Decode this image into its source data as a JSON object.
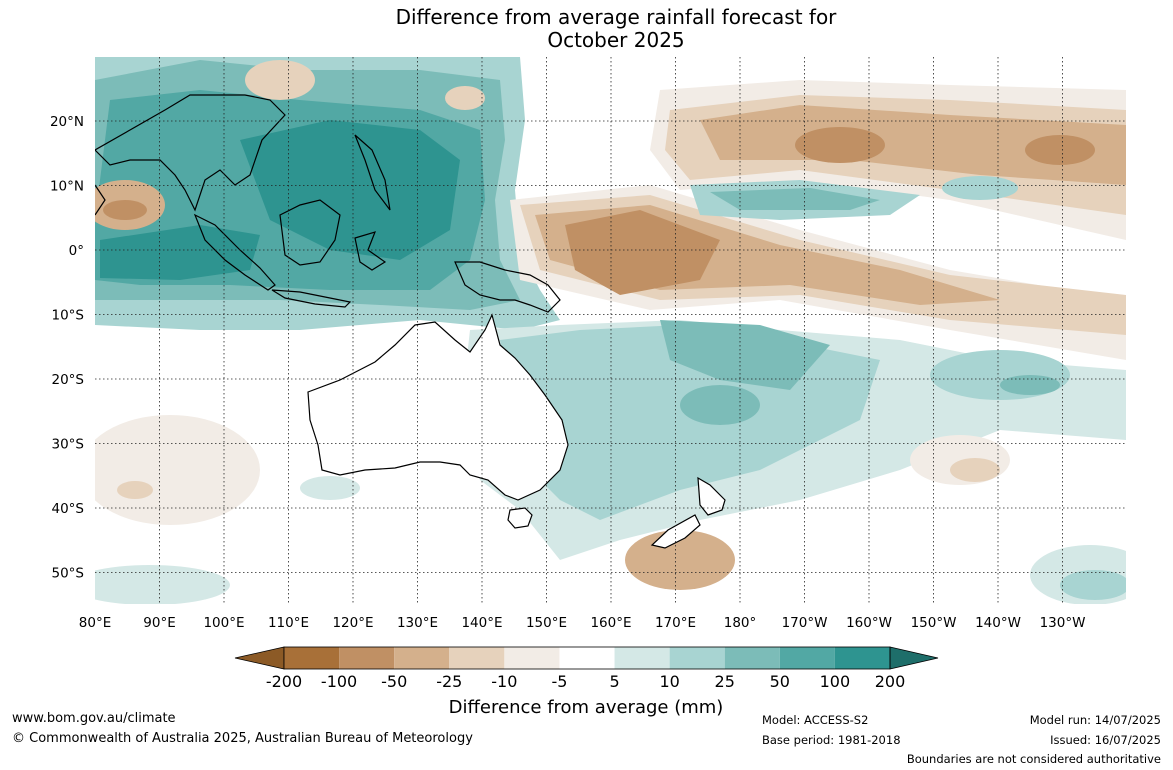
{
  "title": {
    "line1": "Difference from average rainfall forecast for",
    "line2": "October 2025"
  },
  "map": {
    "lon_labels": [
      "80°E",
      "90°E",
      "100°E",
      "110°E",
      "120°E",
      "130°E",
      "140°E",
      "150°E",
      "160°E",
      "170°E",
      "180°",
      "170°W",
      "160°W",
      "150°W",
      "140°W",
      "130°W"
    ],
    "lat_labels": [
      "20°N",
      "10°N",
      "0°",
      "10°S",
      "20°S",
      "30°S",
      "40°S",
      "50°S"
    ],
    "region": "Australia, Indonesia, Western Pacific"
  },
  "colorbar": {
    "tick_labels": [
      "-200",
      "-100",
      "-50",
      "-25",
      "-10",
      "-5",
      "5",
      "10",
      "25",
      "50",
      "100",
      "200"
    ],
    "colors": [
      "#8c5a26",
      "#a87038",
      "#c09064",
      "#d4b08c",
      "#e6d2bc",
      "#f2ece6",
      "#ffffff",
      "#d4e8e6",
      "#a8d4d2",
      "#7cbcb8",
      "#52a8a4",
      "#2e9490",
      "#1e6e6a"
    ],
    "title": "Difference from average (mm)"
  },
  "footer": {
    "website": "www.bom.gov.au/climate",
    "copyright": "© Commonwealth of Australia 2025, Australian Bureau of Meteorology",
    "model": "Model: ACCESS-S2",
    "base_period": "Base period: 1981-2018",
    "model_run": "Model run: 14/07/2025",
    "issued": "Issued: 16/07/2025",
    "disclaimer": "Boundaries are not considered authoritative"
  }
}
